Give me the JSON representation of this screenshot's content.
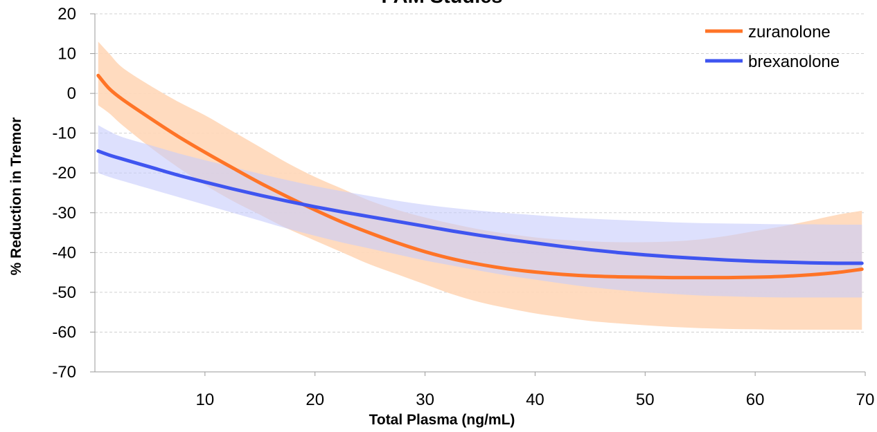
{
  "chart_data": {
    "type": "line",
    "title": "PAM Studies",
    "xlabel": "Total Plasma (ng/mL)",
    "ylabel": "% Reduction in Tremor",
    "xlim": [
      0,
      70
    ],
    "ylim": [
      -70,
      20
    ],
    "x_ticks": [
      10,
      20,
      30,
      40,
      50,
      60,
      70
    ],
    "y_ticks": [
      20,
      10,
      0,
      -10,
      -20,
      -30,
      -40,
      -50,
      -60,
      -70
    ],
    "x_tick_labels": [
      "10",
      "20",
      "30",
      "40",
      "50",
      "60",
      "70"
    ],
    "y_tick_labels": [
      "20",
      "10",
      "0",
      "-10",
      "-20",
      "-30",
      "-40",
      "-50",
      "-60",
      "-70"
    ],
    "grid": "horizontal dashed",
    "legend_position": "top-right",
    "series": [
      {
        "name": "zuranolone",
        "color": "#FF7427",
        "band_color": "#FFD7B8",
        "x": [
          0.3,
          1.3,
          2.5,
          5,
          7.5,
          10,
          12.5,
          15,
          17.5,
          20,
          22.5,
          25,
          27.5,
          30,
          32.5,
          35,
          37.5,
          40,
          42.5,
          45,
          47.5,
          50,
          52.5,
          55,
          57.5,
          60,
          62.5,
          65,
          67.5,
          69.7
        ],
        "values": [
          4.5,
          1.2,
          -1.5,
          -6.2,
          -10.7,
          -14.8,
          -18.7,
          -22.5,
          -26.0,
          -29.3,
          -32.4,
          -35.1,
          -37.6,
          -39.8,
          -41.6,
          -43.0,
          -44.1,
          -44.9,
          -45.5,
          -45.9,
          -46.1,
          -46.2,
          -46.3,
          -46.3,
          -46.3,
          -46.2,
          -46.0,
          -45.6,
          -45.0,
          -44.2
        ],
        "lower": [
          -3.0,
          -5.0,
          -8.0,
          -13.5,
          -18.5,
          -23.0,
          -27.0,
          -30.5,
          -34.0,
          -37.0,
          -40.0,
          -43.0,
          -45.5,
          -48.0,
          -50.5,
          -52.5,
          -54.0,
          -55.3,
          -56.3,
          -57.2,
          -57.8,
          -58.3,
          -58.7,
          -59.0,
          -59.2,
          -59.3,
          -59.4,
          -59.4,
          -59.4,
          -59.4
        ],
        "upper": [
          13.0,
          10.0,
          6.5,
          2.0,
          -2.0,
          -5.5,
          -9.5,
          -13.5,
          -17.5,
          -21.0,
          -24.0,
          -27.0,
          -29.3,
          -31.2,
          -32.8,
          -34.2,
          -35.3,
          -36.2,
          -36.8,
          -37.2,
          -37.4,
          -37.4,
          -37.2,
          -36.7,
          -35.8,
          -34.6,
          -33.4,
          -32.0,
          -30.5,
          -29.5
        ]
      },
      {
        "name": "brexanolone",
        "color": "#3F55F0",
        "band_color": "#C7CCFB",
        "x": [
          0.3,
          1.3,
          2.5,
          5,
          7.5,
          10,
          12.5,
          15,
          17.5,
          20,
          22.5,
          25,
          27.5,
          30,
          32.5,
          35,
          37.5,
          40,
          42.5,
          45,
          47.5,
          50,
          52.5,
          55,
          57.5,
          60,
          62.5,
          65,
          67.5,
          69.7
        ],
        "values": [
          -14.5,
          -15.5,
          -16.5,
          -18.5,
          -20.5,
          -22.3,
          -24.0,
          -25.6,
          -27.1,
          -28.5,
          -29.8,
          -31.0,
          -32.2,
          -33.4,
          -34.6,
          -35.7,
          -36.7,
          -37.6,
          -38.5,
          -39.3,
          -40.0,
          -40.6,
          -41.1,
          -41.5,
          -41.9,
          -42.2,
          -42.4,
          -42.6,
          -42.7,
          -42.7
        ],
        "lower": [
          -20.0,
          -21.0,
          -22.0,
          -24.0,
          -26.0,
          -28.0,
          -30.0,
          -32.0,
          -34.0,
          -35.8,
          -37.5,
          -39.0,
          -40.5,
          -42.0,
          -43.3,
          -44.6,
          -45.8,
          -46.8,
          -47.8,
          -48.7,
          -49.4,
          -50.0,
          -50.4,
          -50.8,
          -51.0,
          -51.2,
          -51.3,
          -51.3,
          -51.3,
          -51.3
        ],
        "upper": [
          -8.0,
          -9.5,
          -11.0,
          -13.0,
          -15.0,
          -16.8,
          -18.5,
          -20.2,
          -21.8,
          -23.3,
          -24.6,
          -25.8,
          -27.0,
          -28.0,
          -28.8,
          -29.5,
          -30.1,
          -30.6,
          -31.1,
          -31.5,
          -31.8,
          -32.1,
          -32.4,
          -32.6,
          -32.7,
          -32.8,
          -32.9,
          -32.9,
          -33.0,
          -33.0
        ]
      }
    ]
  }
}
